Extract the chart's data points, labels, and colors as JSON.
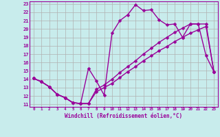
{
  "xlabel": "Windchill (Refroidissement éolien,°C)",
  "xlim": [
    -0.5,
    23.5
  ],
  "ylim": [
    10.7,
    23.3
  ],
  "xticks": [
    0,
    1,
    2,
    3,
    4,
    5,
    6,
    7,
    8,
    9,
    10,
    11,
    12,
    13,
    14,
    15,
    16,
    17,
    18,
    19,
    20,
    21,
    22,
    23
  ],
  "yticks": [
    11,
    12,
    13,
    14,
    15,
    16,
    17,
    18,
    19,
    20,
    21,
    22,
    23
  ],
  "background_color": "#c8ecec",
  "grid_color": "#b0b0b0",
  "line_color": "#990099",
  "line1_x": [
    0,
    1,
    2,
    3,
    4,
    5,
    6,
    7,
    8,
    9,
    10,
    11,
    12,
    13,
    14,
    15,
    16,
    17,
    18,
    19,
    20,
    21,
    22,
    23
  ],
  "line1_y": [
    14.1,
    13.7,
    13.1,
    12.2,
    11.8,
    11.2,
    11.1,
    15.3,
    13.8,
    12.1,
    19.5,
    21.0,
    21.7,
    22.9,
    22.2,
    22.3,
    21.1,
    20.5,
    20.6,
    19.0,
    20.6,
    20.6,
    16.8,
    14.9
  ],
  "line2_x": [
    0,
    1,
    2,
    3,
    4,
    5,
    6,
    7,
    8,
    9,
    10,
    11,
    12,
    13,
    14,
    15,
    16,
    17,
    18,
    19,
    20,
    21,
    22,
    23
  ],
  "line2_y": [
    14.1,
    13.7,
    13.1,
    12.2,
    11.8,
    11.2,
    11.1,
    11.1,
    12.8,
    13.3,
    14.0,
    14.8,
    15.5,
    16.2,
    17.0,
    17.7,
    18.4,
    19.0,
    19.6,
    20.1,
    20.6,
    20.6,
    20.6,
    14.9
  ],
  "line3_x": [
    0,
    1,
    2,
    3,
    4,
    5,
    6,
    7,
    8,
    9,
    10,
    11,
    12,
    13,
    14,
    15,
    16,
    17,
    18,
    19,
    20,
    21,
    22,
    23
  ],
  "line3_y": [
    14.1,
    13.7,
    13.1,
    12.2,
    11.8,
    11.2,
    11.1,
    11.1,
    12.5,
    13.0,
    13.5,
    14.2,
    14.9,
    15.5,
    16.2,
    16.8,
    17.4,
    17.9,
    18.5,
    19.0,
    19.5,
    19.9,
    20.3,
    14.9
  ],
  "marker": "D",
  "markersize": 2.5,
  "linewidth": 1.0
}
